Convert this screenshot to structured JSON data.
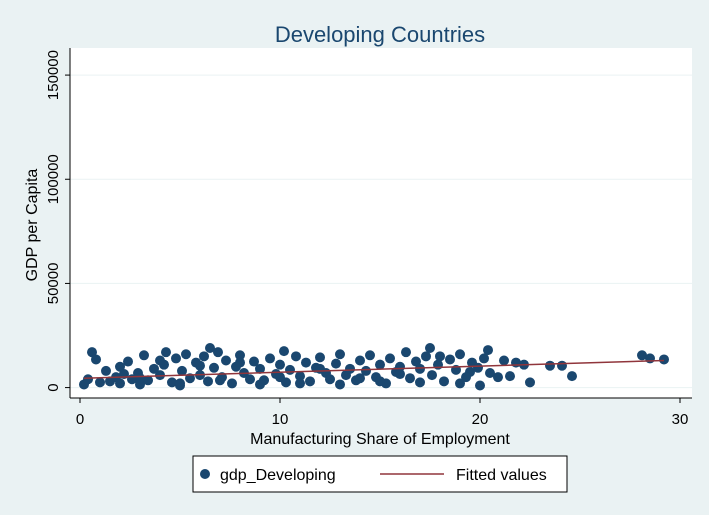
{
  "chart_data": {
    "type": "scatter",
    "title": "Developing Countries",
    "x_label": "Manufacturing Share of Employment",
    "y_label": "GDP per Capita",
    "xlim": [
      -0.5,
      30.6
    ],
    "ylim": [
      -5000,
      163000
    ],
    "xticks": [
      0,
      10,
      20,
      30
    ],
    "yticks": [
      0,
      50000,
      100000,
      150000
    ],
    "grid": true,
    "legend": "bottom",
    "series": [
      {
        "name": "gdp_Developing",
        "color": "#1a476f",
        "kind": "scatter",
        "x": [
          0.6,
          0.8,
          1.3,
          2.4,
          3.2,
          4.3,
          6.5,
          10.2,
          17.5,
          20.4,
          21.2,
          21.8,
          22.2,
          22.5,
          21.5,
          20.9,
          20.0,
          23.5,
          24.1,
          24.6,
          28.1,
          28.5,
          29.2,
          19.5,
          0.2,
          0.4,
          1.0,
          2.0,
          3.0,
          5.0,
          1.5,
          1.8,
          2.2,
          2.6,
          2.9,
          3.4,
          3.7,
          4.0,
          4.2,
          4.6,
          4.8,
          5.1,
          5.3,
          5.5,
          5.8,
          6.0,
          6.2,
          6.4,
          6.7,
          6.9,
          7.1,
          7.3,
          7.6,
          7.8,
          8.0,
          8.2,
          8.5,
          8.7,
          9.0,
          9.2,
          9.5,
          9.8,
          10.0,
          10.3,
          10.5,
          10.8,
          11.0,
          11.3,
          11.5,
          11.8,
          12.0,
          12.3,
          12.5,
          12.8,
          13.0,
          13.3,
          13.5,
          13.8,
          14.0,
          14.3,
          14.5,
          14.8,
          15.0,
          15.3,
          15.5,
          15.8,
          16.0,
          16.3,
          16.5,
          16.8,
          17.0,
          17.3,
          17.6,
          17.9,
          18.2,
          18.5,
          18.8,
          19.0,
          19.3,
          19.6,
          19.9,
          20.2,
          20.5,
          3.0,
          5.0,
          7.0,
          9.0,
          11.0,
          13.0,
          15.0,
          17.0,
          19.0,
          6.0,
          8.0,
          10.0,
          12.0,
          14.0,
          16.0,
          18.0,
          2.0,
          4.0
        ],
        "values": [
          17000,
          13500,
          8000,
          12500,
          15500,
          17000,
          19000,
          17500,
          19000,
          18000,
          13000,
          12000,
          11000,
          2500,
          5500,
          5000,
          1000,
          10500,
          10500,
          5500,
          15500,
          14000,
          13500,
          7500,
          1500,
          4000,
          2500,
          2000,
          1500,
          1000,
          3000,
          5000,
          6500,
          4000,
          7000,
          3500,
          9000,
          6000,
          11000,
          2500,
          14000,
          8000,
          16000,
          4500,
          12000,
          6000,
          15000,
          3000,
          9500,
          17000,
          5000,
          13000,
          2000,
          10000,
          15500,
          7000,
          4000,
          12500,
          9000,
          3500,
          14000,
          6500,
          11000,
          2500,
          8500,
          15000,
          5500,
          12000,
          3000,
          9500,
          14500,
          7000,
          4000,
          11500,
          16000,
          6000,
          9000,
          3500,
          13000,
          8000,
          15500,
          5000,
          11000,
          2000,
          14000,
          7500,
          10000,
          17000,
          4500,
          12500,
          9000,
          15000,
          6000,
          11000,
          3000,
          13500,
          8500,
          16000,
          5000,
          12000,
          9500,
          14000,
          7000,
          4500,
          2000,
          3500,
          1500,
          2000,
          1500,
          3000,
          2500,
          2000,
          10500,
          12000,
          5000,
          9000,
          4500,
          6500,
          15000,
          10000,
          13000
        ]
      },
      {
        "name": "Fitted values",
        "color": "#90353b",
        "kind": "line",
        "x": [
          0.2,
          29.2
        ],
        "values": [
          4500,
          13000
        ]
      }
    ]
  }
}
